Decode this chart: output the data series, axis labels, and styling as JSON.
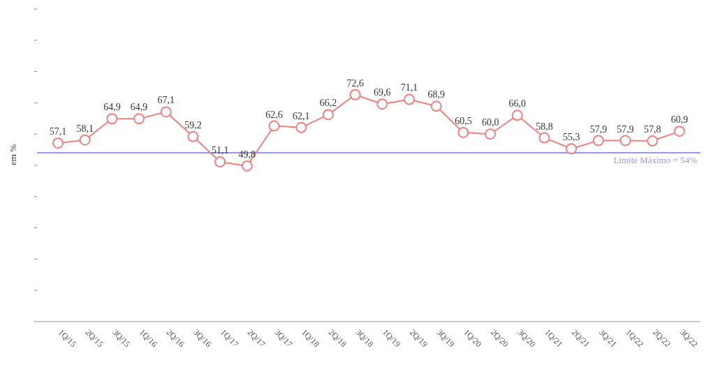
{
  "chart_data": {
    "type": "line",
    "ylabel": "em %",
    "categories": [
      "1Q/15",
      "2Q/15",
      "3Q/15",
      "1Q/16",
      "2Q/16",
      "3Q/16",
      "1Q/17",
      "2Q/17",
      "3Q/17",
      "1Q/18",
      "2Q/18",
      "3Q/18",
      "1Q/19",
      "2Q/19",
      "3Q/19",
      "1Q/20",
      "2Q/20",
      "3Q/20",
      "1Q/21",
      "2Q/21",
      "3Q/21",
      "1Q/22",
      "2Q/22",
      "3Q/22"
    ],
    "series": [
      {
        "color": "#f08080",
        "values": [
          57.1,
          58.1,
          64.9,
          64.9,
          67.1,
          59.2,
          51.1,
          49.8,
          62.6,
          62.1,
          66.2,
          72.6,
          69.6,
          71.1,
          68.9,
          60.5,
          60.0,
          66.0,
          58.8,
          55.3,
          57.9,
          57.9,
          57.8,
          60.9
        ],
        "value_labels": [
          "57,1",
          "58,1",
          "64,9",
          "64,9",
          "67,1",
          "59,2",
          "51,1",
          "49,8",
          "62,6",
          "62,1",
          "66,2",
          "72,6",
          "69,6",
          "71,1",
          "68,9",
          "60,5",
          "60,0",
          "66,0",
          "58,8",
          "55,3",
          "57,9",
          "57,9",
          "57,8",
          "60,9"
        ]
      }
    ],
    "yticks": [
      {
        "value": 0,
        "label": null
      },
      {
        "value": 10,
        "label": null
      },
      {
        "value": 20,
        "label": null
      },
      {
        "value": 30,
        "label": null
      },
      {
        "value": 40,
        "label": null
      },
      {
        "value": 50,
        "label": null
      },
      {
        "value": 60,
        "label": null
      },
      {
        "value": 70,
        "label": null
      },
      {
        "value": 80,
        "label": null
      },
      {
        "value": 90,
        "label": null
      },
      {
        "value": 100,
        "label": null
      }
    ],
    "tick_labels": "x",
    "grid": false,
    "legend": false,
    "marker": "circle",
    "line_style": "solid",
    "ref_lines": [
      {
        "axis": "y",
        "value": 54,
        "label": "Limite Máximo = 54%",
        "color": "#9999dd"
      }
    ]
  }
}
